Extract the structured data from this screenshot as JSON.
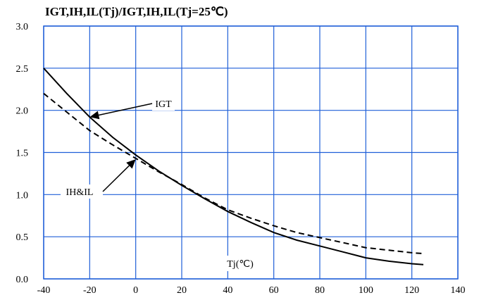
{
  "chart_data": {
    "type": "line",
    "title": "IGT,IH,IL(Tj)/IGT,IH,IL(Tj=25℃)",
    "xlabel": "Tj(℃)",
    "ylabel": "",
    "xlim": [
      -40,
      140
    ],
    "ylim": [
      0.0,
      3.0
    ],
    "x_ticks": [
      "-40",
      "-20",
      "0",
      "20",
      "40",
      "60",
      "80",
      "100",
      "120",
      "140"
    ],
    "y_ticks": [
      "0.0",
      "0.5",
      "1.0",
      "1.5",
      "2.0",
      "2.5",
      "3.0"
    ],
    "grid": true,
    "grid_color": "#1f5fd8",
    "series": [
      {
        "name": "IGT",
        "style": "solid",
        "color": "#000000",
        "x": [
          -40,
          -30,
          -20,
          -10,
          0,
          10,
          20,
          30,
          40,
          50,
          60,
          70,
          80,
          90,
          100,
          110,
          120,
          125
        ],
        "y": [
          2.5,
          2.2,
          1.92,
          1.68,
          1.47,
          1.28,
          1.11,
          0.95,
          0.8,
          0.67,
          0.55,
          0.46,
          0.39,
          0.32,
          0.25,
          0.21,
          0.18,
          0.17
        ]
      },
      {
        "name": "IH&IL",
        "style": "dashed",
        "color": "#000000",
        "x": [
          -40,
          -30,
          -20,
          -10,
          0,
          10,
          20,
          30,
          40,
          50,
          60,
          70,
          80,
          90,
          100,
          110,
          120,
          125
        ],
        "y": [
          2.2,
          1.98,
          1.76,
          1.59,
          1.43,
          1.27,
          1.12,
          0.96,
          0.82,
          0.72,
          0.63,
          0.55,
          0.49,
          0.43,
          0.37,
          0.34,
          0.31,
          0.3
        ]
      }
    ],
    "annotations": [
      {
        "text": "IGT",
        "series": "IGT",
        "points_to": [
          -20,
          1.92
        ]
      },
      {
        "text": "IH&IL",
        "series": "IH&IL",
        "points_to": [
          0,
          1.42
        ]
      }
    ]
  }
}
